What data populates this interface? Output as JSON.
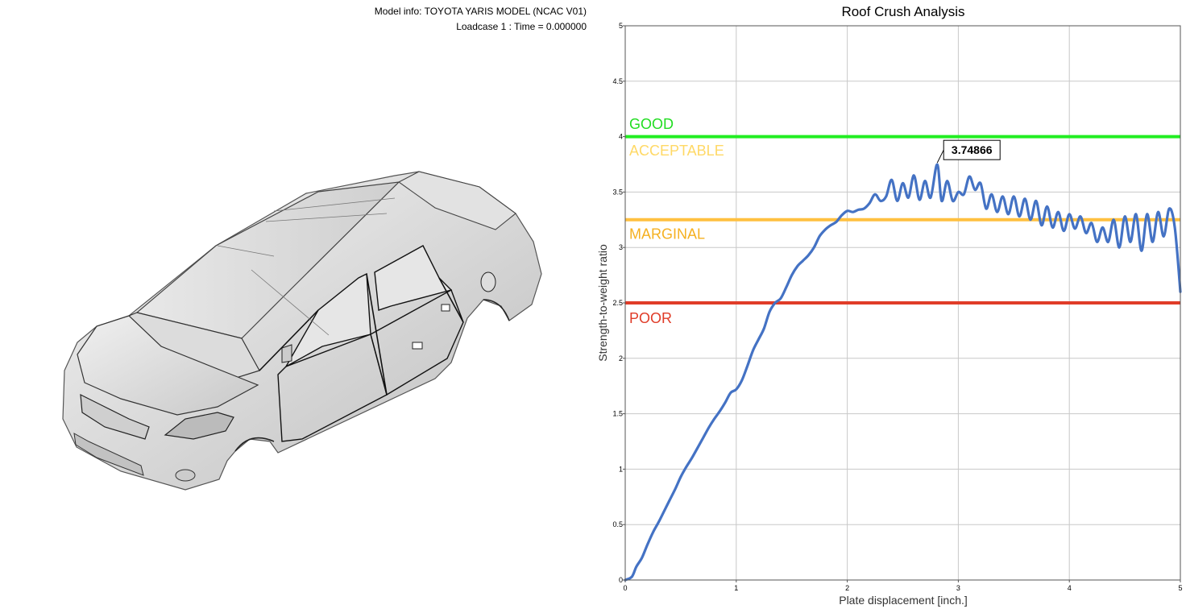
{
  "viewport": {
    "model_info": "Model info: TOYOTA YARIS MODEL (NCAC V01)",
    "loadcase": "Loadcase 1 : Time = 0.000000"
  },
  "chart_data": {
    "type": "line",
    "title": "Roof Crush Analysis",
    "xlabel": "Plate displacement [inch.]",
    "ylabel": "Strength-to-weight ratio",
    "xlim": [
      0,
      5
    ],
    "ylim": [
      0,
      5
    ],
    "x_ticks": [
      "0",
      "1",
      "2",
      "3",
      "4",
      "5"
    ],
    "y_ticks": [
      "0",
      "0.5",
      "1",
      "1.5",
      "2",
      "2.5",
      "3",
      "3.5",
      "4",
      "4.5",
      "5"
    ],
    "grid": true,
    "line_color": "#4472c4",
    "thresholds": [
      {
        "label": "GOOD",
        "value": 4.0,
        "color": "#22ee22",
        "label_color": "#22dd22",
        "label_y": 4.12
      },
      {
        "label": "ACCEPTABLE",
        "value": 4.0,
        "color": "#22ee22",
        "label_color": "#ffd966",
        "label_y": 3.88,
        "line": false
      },
      {
        "label": "MARGINAL",
        "value": 3.25,
        "color": "#ffc040",
        "label_color": "#f5b020",
        "label_y": 3.13
      },
      {
        "label": "POOR",
        "value": 2.5,
        "color": "#e03c28",
        "label_color": "#e03c28",
        "label_y": 2.37
      }
    ],
    "annotation": {
      "label": "3.74866",
      "x": 2.81,
      "y": 3.74866
    },
    "x": [
      0.0,
      0.06,
      0.1,
      0.15,
      0.2,
      0.25,
      0.3,
      0.35,
      0.4,
      0.45,
      0.5,
      0.55,
      0.6,
      0.65,
      0.7,
      0.75,
      0.8,
      0.85,
      0.9,
      0.95,
      1.0,
      1.05,
      1.1,
      1.15,
      1.2,
      1.25,
      1.3,
      1.35,
      1.4,
      1.45,
      1.5,
      1.55,
      1.6,
      1.65,
      1.7,
      1.75,
      1.8,
      1.85,
      1.9,
      1.95,
      2.0,
      2.05,
      2.1,
      2.15,
      2.2,
      2.25,
      2.3,
      2.35,
      2.4,
      2.45,
      2.5,
      2.55,
      2.6,
      2.65,
      2.7,
      2.75,
      2.81,
      2.85,
      2.9,
      2.95,
      3.0,
      3.05,
      3.1,
      3.15,
      3.2,
      3.25,
      3.3,
      3.35,
      3.4,
      3.45,
      3.5,
      3.55,
      3.6,
      3.65,
      3.7,
      3.75,
      3.8,
      3.85,
      3.9,
      3.95,
      4.0,
      4.05,
      4.1,
      4.15,
      4.2,
      4.25,
      4.3,
      4.35,
      4.4,
      4.45,
      4.5,
      4.55,
      4.6,
      4.65,
      4.7,
      4.75,
      4.8,
      4.85,
      4.9,
      4.95,
      5.0
    ],
    "y": [
      0.0,
      0.03,
      0.12,
      0.2,
      0.32,
      0.43,
      0.52,
      0.62,
      0.72,
      0.82,
      0.93,
      1.02,
      1.1,
      1.19,
      1.28,
      1.37,
      1.45,
      1.52,
      1.6,
      1.69,
      1.72,
      1.8,
      1.93,
      2.07,
      2.17,
      2.27,
      2.42,
      2.5,
      2.54,
      2.64,
      2.75,
      2.83,
      2.88,
      2.93,
      3.0,
      3.1,
      3.16,
      3.2,
      3.23,
      3.29,
      3.33,
      3.32,
      3.34,
      3.35,
      3.4,
      3.48,
      3.42,
      3.46,
      3.61,
      3.42,
      3.58,
      3.45,
      3.65,
      3.43,
      3.6,
      3.45,
      3.74866,
      3.42,
      3.6,
      3.42,
      3.5,
      3.48,
      3.64,
      3.52,
      3.58,
      3.35,
      3.48,
      3.32,
      3.46,
      3.3,
      3.46,
      3.28,
      3.44,
      3.25,
      3.42,
      3.2,
      3.37,
      3.18,
      3.32,
      3.15,
      3.3,
      3.17,
      3.28,
      3.13,
      3.22,
      3.05,
      3.18,
      3.05,
      3.25,
      3.0,
      3.28,
      3.05,
      3.3,
      2.97,
      3.3,
      3.05,
      3.32,
      3.1,
      3.35,
      3.18,
      2.6
    ]
  }
}
